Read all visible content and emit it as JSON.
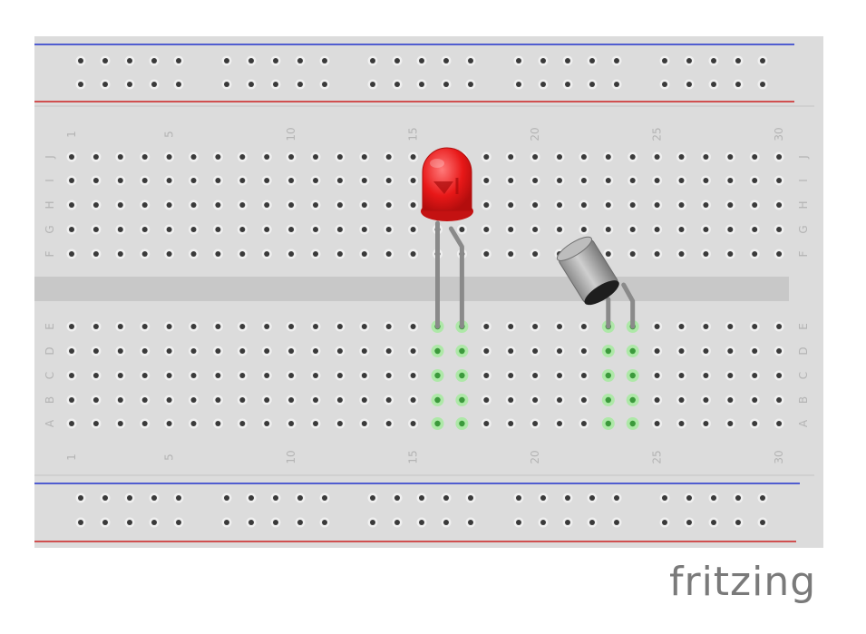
{
  "app": {
    "brand": "fritzing"
  },
  "breadboard": {
    "columns": 30,
    "column_labels": [
      "1",
      "5",
      "10",
      "15",
      "20",
      "25",
      "30"
    ],
    "top_rows": [
      "J",
      "I",
      "H",
      "G",
      "F"
    ],
    "bottom_rows": [
      "E",
      "D",
      "C",
      "B",
      "A"
    ]
  },
  "components": [
    {
      "name": "LED",
      "color": "red",
      "columns": [
        16,
        17
      ]
    },
    {
      "name": "transistor",
      "columns": [
        23,
        24
      ]
    }
  ],
  "colors": {
    "board": "#dcdcdc",
    "channel": "#c8c8c8",
    "rail_blue": "#2233cc",
    "rail_red": "#cc2222",
    "hole": "#3a3a3a",
    "highlight": "#55dd55",
    "led": "#e81818"
  }
}
